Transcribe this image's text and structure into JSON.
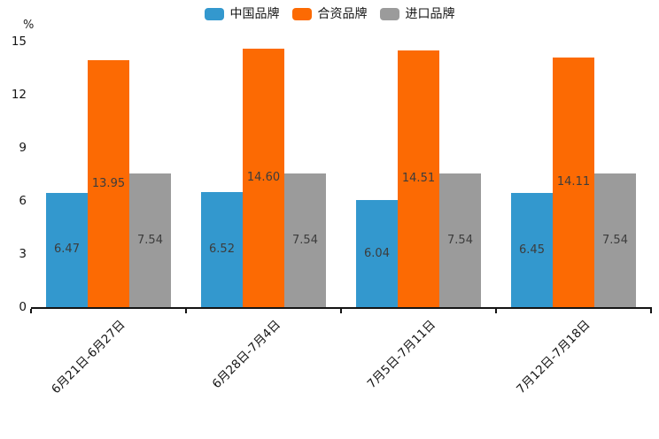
{
  "chart_data": {
    "type": "bar",
    "unit_label": "%",
    "categories": [
      "6月21日-6月27日",
      "6月28日-7月4日",
      "7月5日-7月11日",
      "7月12日-7月18日"
    ],
    "series": [
      {
        "name": "中国品牌",
        "color": "#3398CE",
        "values": [
          6.47,
          6.52,
          6.04,
          6.45
        ]
      },
      {
        "name": "合资品牌",
        "color": "#FC6A03",
        "values": [
          13.95,
          14.6,
          14.51,
          14.11
        ]
      },
      {
        "name": "进口品牌",
        "color": "#9B9B9B",
        "values": [
          7.54,
          7.54,
          7.54,
          7.54
        ]
      }
    ],
    "ylim": [
      0,
      15
    ],
    "yticks": [
      0,
      3,
      6,
      9,
      12,
      15
    ],
    "grid": false,
    "legend_position": "top",
    "value_labels": "inside-center",
    "value_decimals": 2,
    "xlabel_rotation_deg": 45
  }
}
